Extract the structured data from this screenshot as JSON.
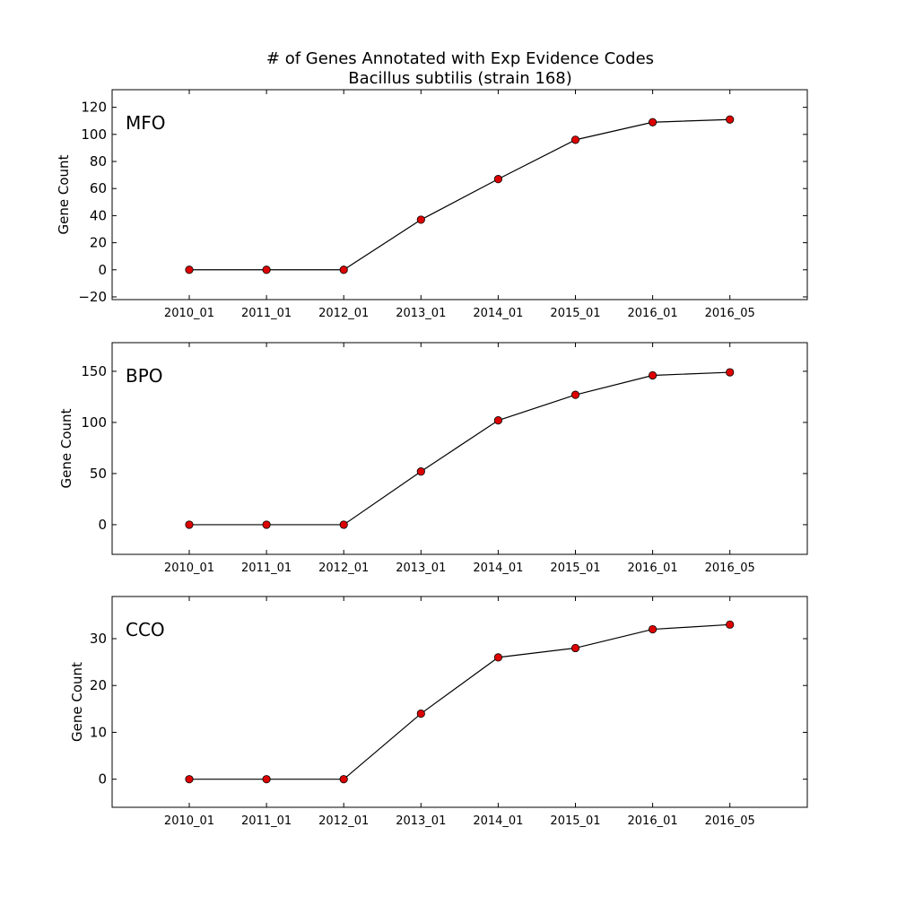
{
  "figure": {
    "title_line1": "# of Genes Annotated with Exp Evidence Codes",
    "title_line2": "Bacillus subtilis (strain 168)"
  },
  "chart_data": [
    {
      "type": "line",
      "label": "MFO",
      "x": [
        "2010_01",
        "2011_01",
        "2012_01",
        "2013_01",
        "2014_01",
        "2015_01",
        "2016_01",
        "2016_05"
      ],
      "values": [
        0,
        0,
        0,
        37,
        67,
        96,
        109,
        111
      ],
      "xlabel": "",
      "ylabel": "Gene Count",
      "ylim": [
        -22,
        133
      ],
      "yticks": [
        -20,
        0,
        20,
        40,
        60,
        80,
        100,
        120
      ],
      "ytick_labels": [
        "−20",
        "0",
        "20",
        "40",
        "60",
        "80",
        "100",
        "120"
      ],
      "line_color": "#000000",
      "marker_color": "#dd0000",
      "grid": false,
      "legend": "none"
    },
    {
      "type": "line",
      "label": "BPO",
      "x": [
        "2010_01",
        "2011_01",
        "2012_01",
        "2013_01",
        "2014_01",
        "2015_01",
        "2016_01",
        "2016_05"
      ],
      "values": [
        0,
        0,
        0,
        52,
        102,
        127,
        146,
        149
      ],
      "xlabel": "",
      "ylabel": "Gene Count",
      "ylim": [
        -29,
        178
      ],
      "yticks": [
        0,
        50,
        100,
        150
      ],
      "ytick_labels": [
        "0",
        "50",
        "100",
        "150"
      ],
      "line_color": "#000000",
      "marker_color": "#dd0000",
      "grid": false,
      "legend": "none"
    },
    {
      "type": "line",
      "label": "CCO",
      "x": [
        "2010_01",
        "2011_01",
        "2012_01",
        "2013_01",
        "2014_01",
        "2015_01",
        "2016_01",
        "2016_05"
      ],
      "values": [
        0,
        0,
        0,
        14,
        26,
        28,
        32,
        33
      ],
      "xlabel": "",
      "ylabel": "Gene Count",
      "ylim": [
        -6,
        39
      ],
      "yticks": [
        0,
        10,
        20,
        30
      ],
      "ytick_labels": [
        "0",
        "10",
        "20",
        "30"
      ],
      "line_color": "#000000",
      "marker_color": "#dd0000",
      "grid": false,
      "legend": "none"
    }
  ]
}
